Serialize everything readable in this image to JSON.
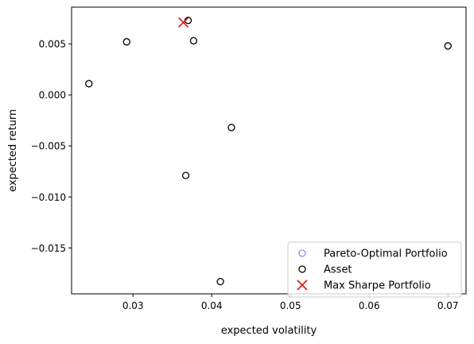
{
  "chart_data": {
    "type": "scatter",
    "title": "",
    "xlabel": "expected volatility",
    "ylabel": "expected return",
    "xlim": [
      0.0222,
      0.0723
    ],
    "ylim": [
      -0.0195,
      0.0086
    ],
    "x_ticks": [
      0.03,
      0.04,
      0.05,
      0.06,
      0.07
    ],
    "x_tick_labels": [
      "0.03",
      "0.04",
      "0.05",
      "0.06",
      "0.07"
    ],
    "y_ticks": [
      -0.015,
      -0.01,
      -0.005,
      0.0,
      0.005
    ],
    "y_tick_labels": [
      "−0.015",
      "−0.010",
      "−0.005",
      "0.000",
      "0.005"
    ],
    "grid": false,
    "legend_position": "lower-right",
    "series": [
      {
        "name": "Pareto-Optimal Portfolio",
        "marker": "open-circle",
        "color": "#9988dd",
        "points": []
      },
      {
        "name": "Asset",
        "marker": "open-circle",
        "color": "#000000",
        "points": [
          {
            "x": 0.0244,
            "y": 0.0011
          },
          {
            "x": 0.0292,
            "y": 0.0052
          },
          {
            "x": 0.037,
            "y": 0.0073
          },
          {
            "x": 0.0377,
            "y": 0.0053
          },
          {
            "x": 0.0425,
            "y": -0.0032
          },
          {
            "x": 0.0367,
            "y": -0.0079
          },
          {
            "x": 0.0411,
            "y": -0.0183
          },
          {
            "x": 0.07,
            "y": 0.0048
          }
        ]
      },
      {
        "name": "Max Sharpe Portfolio",
        "marker": "x",
        "color": "#dd1111",
        "points": [
          {
            "x": 0.0364,
            "y": 0.0071
          }
        ]
      }
    ]
  }
}
